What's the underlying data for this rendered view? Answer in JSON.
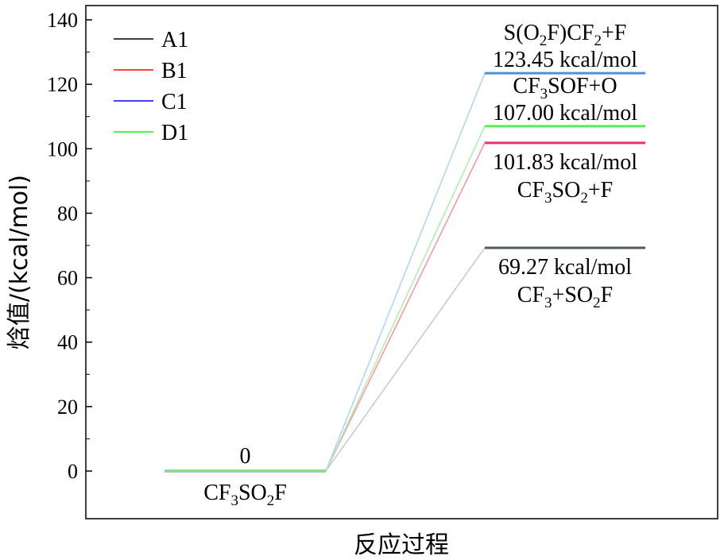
{
  "chart_data": {
    "type": "line",
    "ylabel": "焓值/(kcal/mol)",
    "xlabel": "反应过程",
    "ylim": [
      -15,
      145
    ],
    "yticks": [
      0,
      20,
      40,
      60,
      80,
      100,
      120,
      140
    ],
    "legend_position": "top-left",
    "reactant": {
      "value": "0",
      "species": [
        "CF",
        "3",
        "SO",
        "2",
        "F"
      ]
    },
    "series": [
      {
        "name": "A1",
        "color": "#000000",
        "connector_color": "#c8c8c8",
        "product_value": 69.27,
        "value_label": "69.27 kcal/mol",
        "species_label": [
          "CF",
          "3",
          "+SO",
          "2",
          "F"
        ]
      },
      {
        "name": "B1",
        "color": "#ff0000",
        "connector_color": "#ff8fa6",
        "product_value": 101.83,
        "value_label": "101.83 kcal/mol",
        "species_label": [
          "CF",
          "3",
          "SO",
          "2",
          "+F"
        ]
      },
      {
        "name": "C1",
        "color": "#0000ff",
        "connector_color": "#a8d4f5",
        "product_value": 123.45,
        "value_label": "123.45 kcal/mol",
        "species_label": [
          "S(O",
          "2",
          "F)CF",
          "2",
          "+F"
        ]
      },
      {
        "name": "D1",
        "color": "#00ff00",
        "connector_color": "#a8f0a8",
        "product_value": 107.0,
        "value_label": "107.00 kcal/mol",
        "species_label": [
          "CF",
          "3",
          "SOF+O"
        ]
      }
    ]
  }
}
